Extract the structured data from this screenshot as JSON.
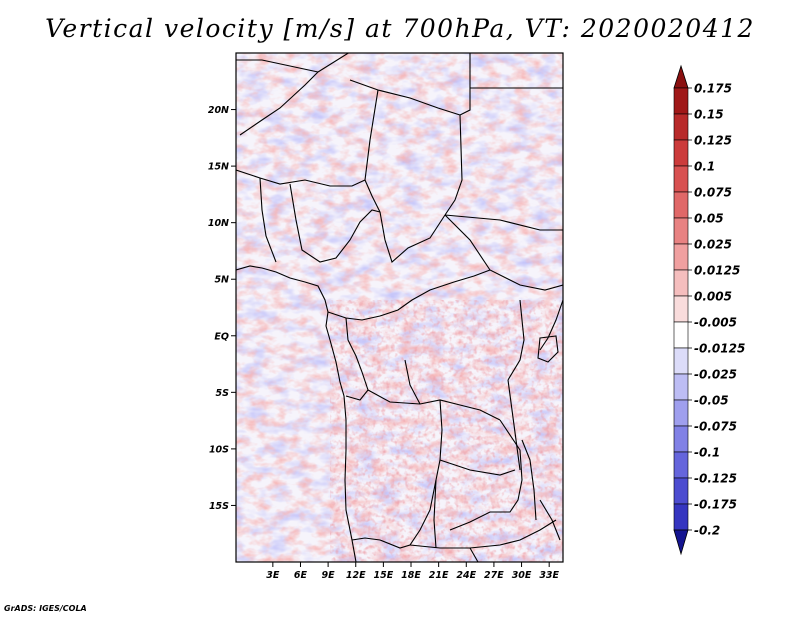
{
  "title": "Vertical velocity [m/s] at 700hPa, VT: 2020020412",
  "credit": "GrADS: IGES/COLA",
  "map": {
    "lon_range": [
      -1,
      34.5
    ],
    "lat_range": [
      -20,
      25
    ],
    "lat_ticks": [
      {
        "value": 20,
        "label": "20N"
      },
      {
        "value": 15,
        "label": "15N"
      },
      {
        "value": 10,
        "label": "10N"
      },
      {
        "value": 5,
        "label": "5N"
      },
      {
        "value": 0,
        "label": "EQ"
      },
      {
        "value": -5,
        "label": "5S"
      },
      {
        "value": -10,
        "label": "10S"
      },
      {
        "value": -15,
        "label": "15S"
      }
    ],
    "lon_ticks": [
      {
        "value": 3,
        "label": "3E"
      },
      {
        "value": 6,
        "label": "6E"
      },
      {
        "value": 9,
        "label": "9E"
      },
      {
        "value": 12,
        "label": "12E"
      },
      {
        "value": 15,
        "label": "15E"
      },
      {
        "value": 18,
        "label": "18E"
      },
      {
        "value": 21,
        "label": "21E"
      },
      {
        "value": 24,
        "label": "24E"
      },
      {
        "value": 27,
        "label": "27E"
      },
      {
        "value": 30,
        "label": "30E"
      },
      {
        "value": 33,
        "label": "33E"
      }
    ]
  },
  "colorbar": {
    "levels": [
      {
        "label": "0.175",
        "color": "#a01818"
      },
      {
        "label": "0.15",
        "color": "#b82a2a"
      },
      {
        "label": "0.125",
        "color": "#cc3b3b"
      },
      {
        "label": "0.1",
        "color": "#d85151"
      },
      {
        "label": "0.075",
        "color": "#e06868"
      },
      {
        "label": "0.05",
        "color": "#e88282"
      },
      {
        "label": "0.025",
        "color": "#f0a0a0"
      },
      {
        "label": "0.0125",
        "color": "#f5bebe"
      },
      {
        "label": "0.005",
        "color": "#f9dcdc"
      },
      {
        "label": "-0.005",
        "color": "#ffffff"
      },
      {
        "label": "-0.0125",
        "color": "#dcdcf9"
      },
      {
        "label": "-0.025",
        "color": "#bdbdf4"
      },
      {
        "label": "-0.05",
        "color": "#9f9fee"
      },
      {
        "label": "-0.075",
        "color": "#8181e6"
      },
      {
        "label": "-0.1",
        "color": "#6565dc"
      },
      {
        "label": "-0.125",
        "color": "#4c4cd0"
      },
      {
        "label": "-0.175",
        "color": "#3535c0"
      },
      {
        "label": "-0.2",
        "color": "#2020a8"
      }
    ],
    "top_arrow_color": "#8a1010",
    "bottom_arrow_color": "#141490"
  }
}
